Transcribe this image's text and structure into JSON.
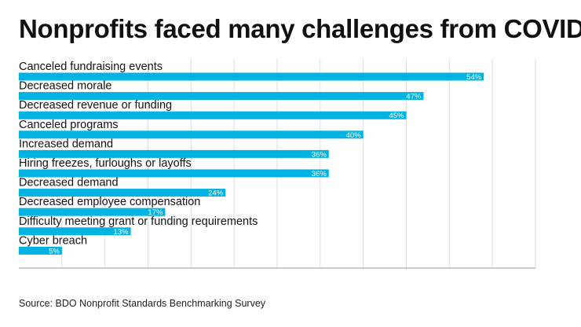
{
  "title": "Nonprofits faced many challenges from COVID",
  "source": "Source: BDO Nonprofit Standards Benchmarking Survey",
  "colors": {
    "bar": "#00b3e3",
    "grid": "#dedede",
    "axis": "#999999"
  },
  "chart_data": {
    "type": "bar",
    "orientation": "horizontal",
    "title": "Nonprofits faced many challenges from COVID",
    "xlabel": "",
    "ylabel": "",
    "xlim": [
      0,
      60
    ],
    "grid": true,
    "value_suffix": "%",
    "categories": [
      "Canceled fundraising events",
      "Decreased morale",
      "Decreased revenue or funding",
      "Canceled programs",
      "Increased demand",
      "Hiring freezes, furloughs or layoffs",
      "Decreased demand",
      "Decreased employee compensation",
      "Difficulty meeting grant or funding requirements",
      "Cyber breach"
    ],
    "values": [
      54,
      47,
      45,
      40,
      36,
      36,
      24,
      17,
      13,
      5
    ],
    "value_labels": [
      "54%",
      "47%",
      "45%",
      "40%",
      "36%",
      "36%",
      "24%",
      "17%",
      "13%",
      "5%"
    ]
  }
}
